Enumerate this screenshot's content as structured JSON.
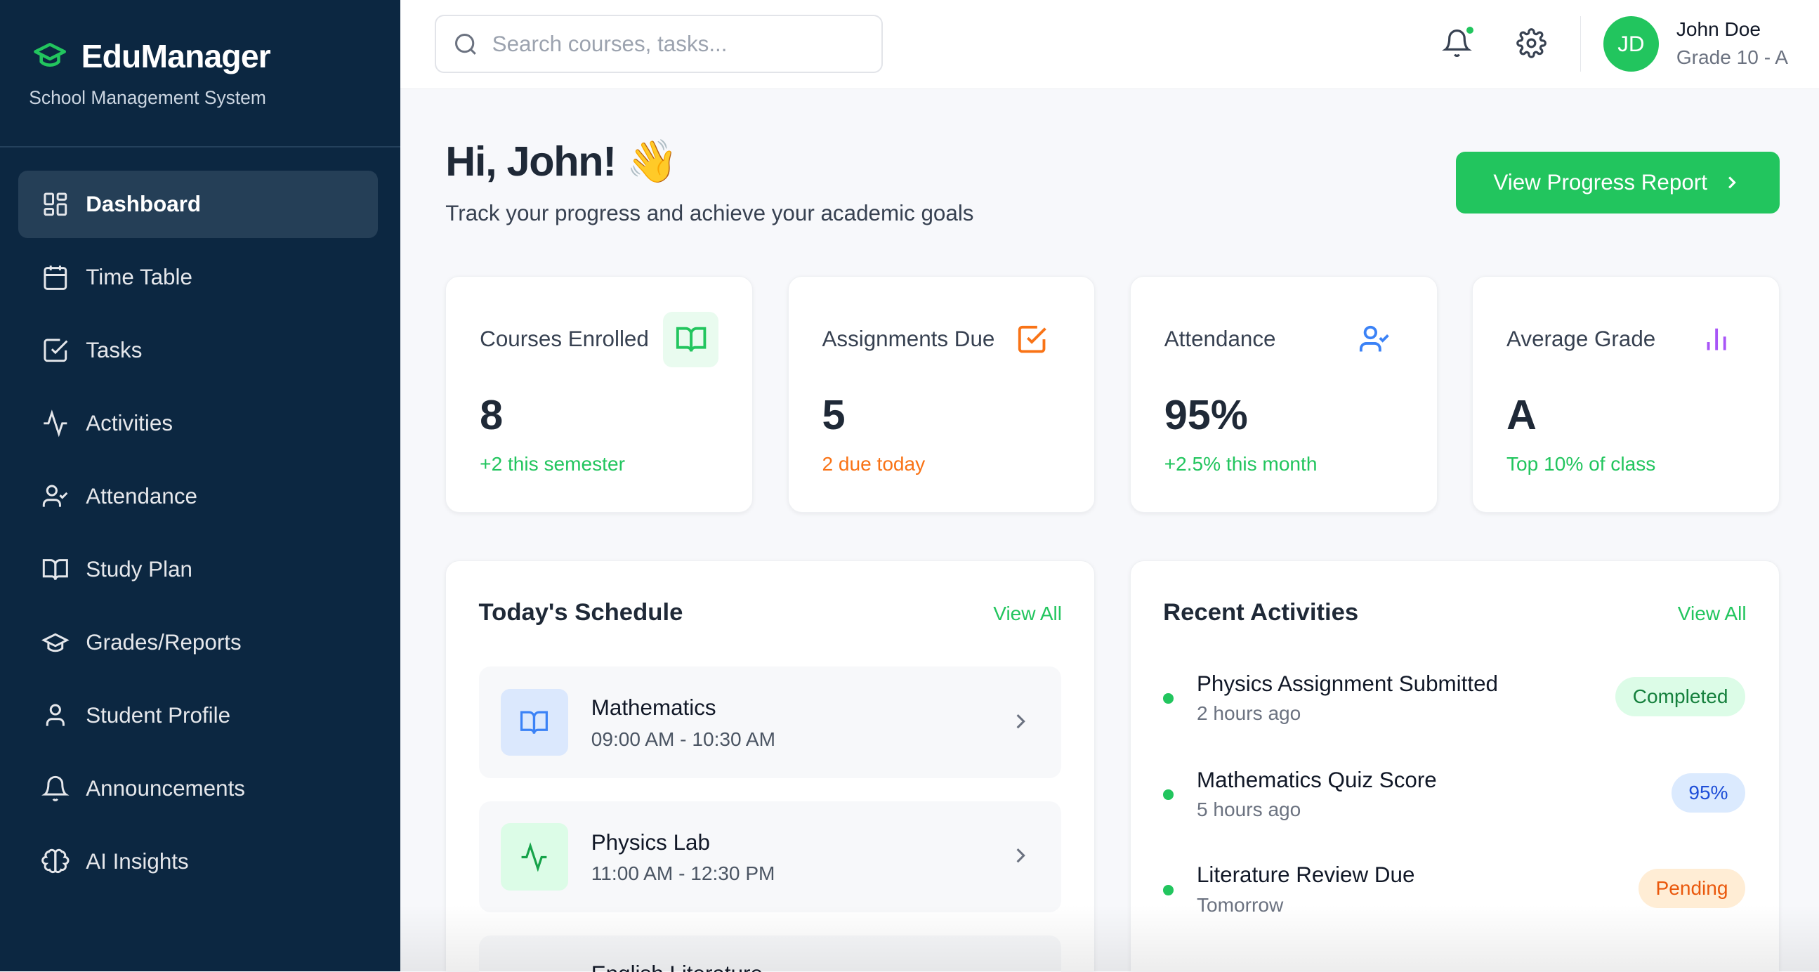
{
  "brand": {
    "name": "EduManager",
    "subtitle": "School Management System",
    "accent": "#22c55e"
  },
  "sidebar": {
    "items": [
      {
        "label": "Dashboard",
        "icon": "dashboard-icon",
        "active": true
      },
      {
        "label": "Time Table",
        "icon": "calendar-icon"
      },
      {
        "label": "Tasks",
        "icon": "checkbox-icon"
      },
      {
        "label": "Activities",
        "icon": "activity-icon"
      },
      {
        "label": "Attendance",
        "icon": "user-check-icon"
      },
      {
        "label": "Study Plan",
        "icon": "book-icon"
      },
      {
        "label": "Grades/Reports",
        "icon": "graduation-cap-icon"
      },
      {
        "label": "Student Profile",
        "icon": "user-icon"
      },
      {
        "label": "Announcements",
        "icon": "bell-icon"
      },
      {
        "label": "AI Insights",
        "icon": "brain-icon"
      }
    ]
  },
  "topbar": {
    "search_placeholder": "Search courses, tasks...",
    "user": {
      "initials": "JD",
      "name": "John Doe",
      "grade": "Grade 10 - A"
    }
  },
  "header": {
    "greeting": "Hi, John! 👋",
    "subtitle": "Track your progress and achieve your academic goals",
    "cta": "View Progress Report"
  },
  "stats": [
    {
      "label": "Courses Enrolled",
      "value": "8",
      "note": "+2 this semester",
      "color": "#22c55e",
      "icon": "book-open-icon"
    },
    {
      "label": "Assignments Due",
      "value": "5",
      "note": "2 due today",
      "color": "#f97316",
      "icon": "checkbox-icon"
    },
    {
      "label": "Attendance",
      "value": "95%",
      "note": "+2.5% this month",
      "color": "#22c55e",
      "icon": "user-check-icon"
    },
    {
      "label": "Average Grade",
      "value": "A",
      "note": "Top 10% of class",
      "color": "#22c55e",
      "icon": "bar-chart-icon"
    }
  ],
  "schedule": {
    "title": "Today's Schedule",
    "view_all": "View All",
    "items": [
      {
        "name": "Mathematics",
        "time": "09:00 AM - 10:30 AM",
        "icon": "book-open-icon"
      },
      {
        "name": "Physics Lab",
        "time": "11:00 AM - 12:30 PM",
        "icon": "activity-icon"
      },
      {
        "name": "English Literature",
        "time": ""
      }
    ]
  },
  "activities": {
    "title": "Recent Activities",
    "view_all": "View All",
    "items": [
      {
        "title": "Physics Assignment Submitted",
        "time": "2 hours ago",
        "badge": "Completed"
      },
      {
        "title": "Mathematics Quiz Score",
        "time": "5 hours ago",
        "badge": "95%"
      },
      {
        "title": "Literature Review Due",
        "time": "Tomorrow",
        "badge": "Pending"
      }
    ]
  }
}
